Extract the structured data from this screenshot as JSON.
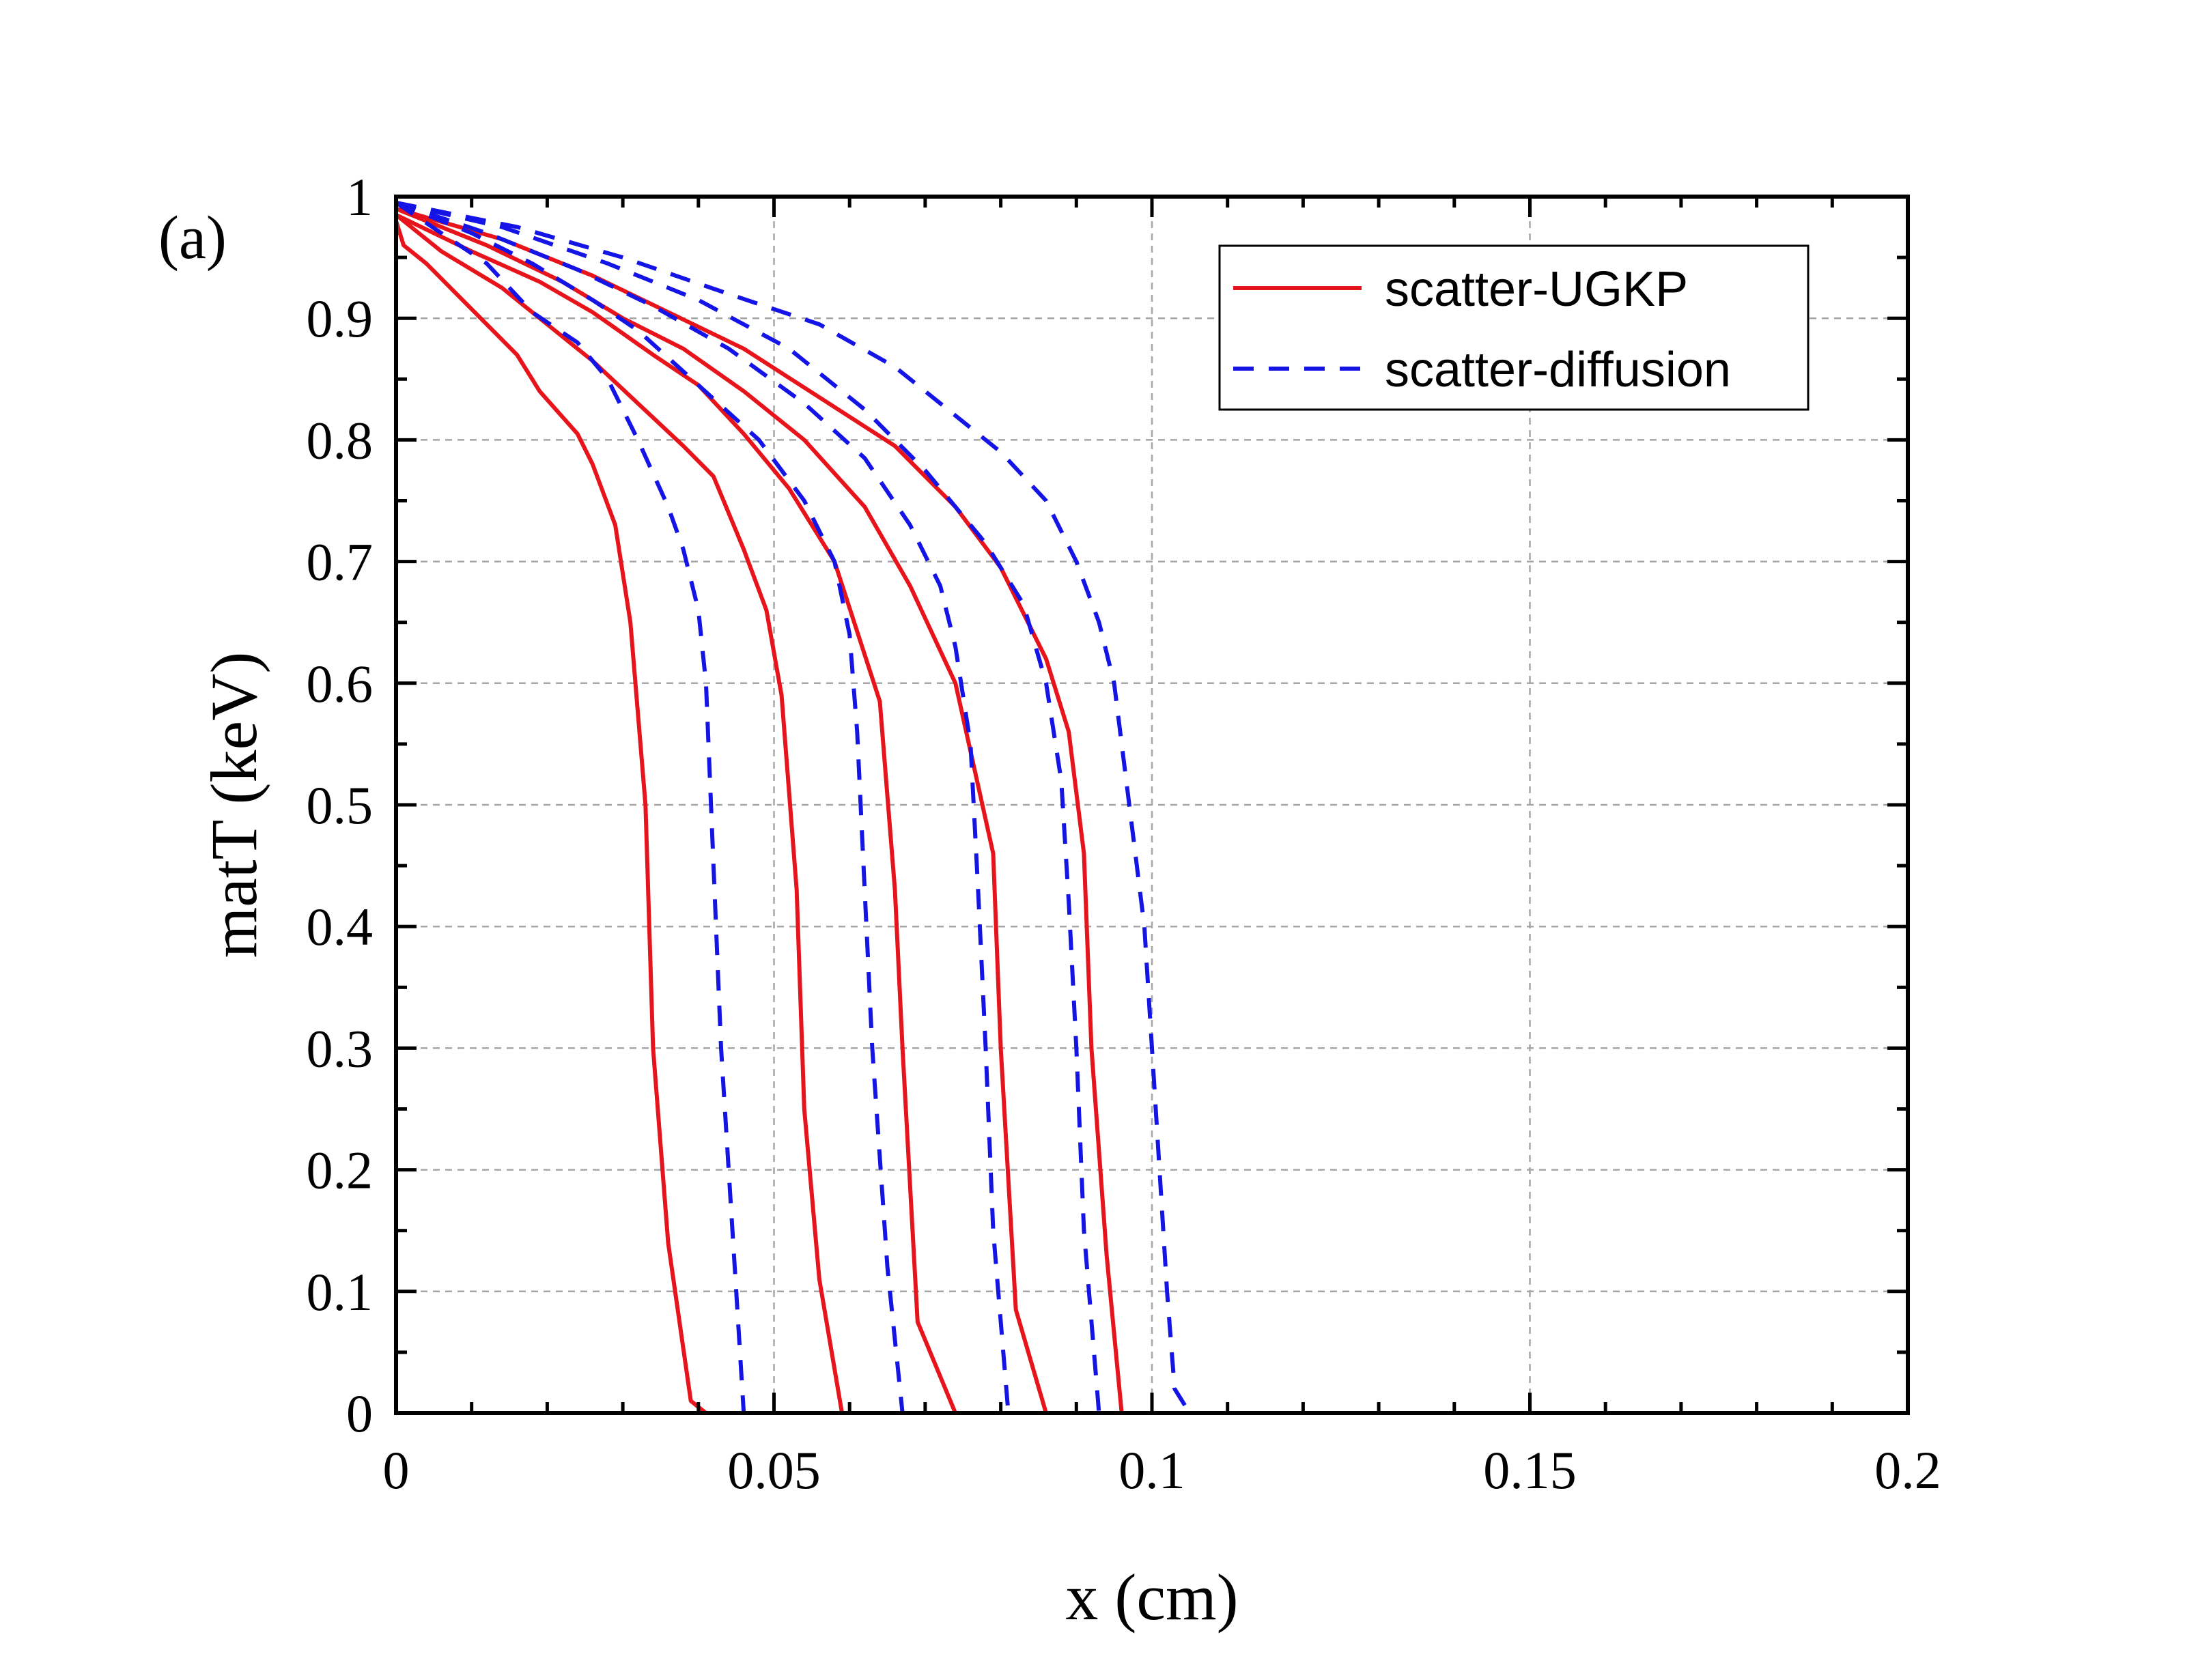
{
  "chart_data": {
    "type": "line",
    "panel_label": "(a)",
    "xlabel": "x (cm)",
    "ylabel": "matT (keV)",
    "xlim": [
      0,
      0.2
    ],
    "ylim": [
      0,
      1
    ],
    "x_ticks": [
      0,
      0.05,
      0.1,
      0.15,
      0.2
    ],
    "x_tick_labels": [
      "0",
      "0.05",
      "0.1",
      "0.15",
      "0.2"
    ],
    "y_ticks": [
      0,
      0.1,
      0.2,
      0.3,
      0.4,
      0.5,
      0.6,
      0.7,
      0.8,
      0.9,
      1
    ],
    "y_tick_labels": [
      "0",
      "0.1",
      "0.2",
      "0.3",
      "0.4",
      "0.5",
      "0.6",
      "0.7",
      "0.8",
      "0.9",
      "1"
    ],
    "grid": true,
    "legend_position": "top-right",
    "legend": [
      {
        "label": "scatter-UGKP",
        "style": "solid",
        "color": "#e8141c"
      },
      {
        "label": "scatter-diffusion",
        "style": "dashed",
        "color": "#1414e6"
      }
    ],
    "series": [
      {
        "name": "scatter-UGKP",
        "style": "solid",
        "color": "#e8141c",
        "points": [
          [
            0,
            0.98
          ],
          [
            0.001,
            0.96
          ],
          [
            0.004,
            0.945
          ],
          [
            0.008,
            0.92
          ],
          [
            0.012,
            0.895
          ],
          [
            0.016,
            0.87
          ],
          [
            0.019,
            0.84
          ],
          [
            0.024,
            0.805
          ],
          [
            0.026,
            0.78
          ],
          [
            0.029,
            0.73
          ],
          [
            0.031,
            0.65
          ],
          [
            0.033,
            0.5
          ],
          [
            0.034,
            0.3
          ],
          [
            0.036,
            0.14
          ],
          [
            0.039,
            0.01
          ],
          [
            0.041,
            0
          ],
          [
            0.2,
            0
          ]
        ]
      },
      {
        "name": "scatter-UGKP",
        "style": "solid",
        "color": "#e8141c",
        "points": [
          [
            0,
            0.985
          ],
          [
            0.006,
            0.955
          ],
          [
            0.014,
            0.925
          ],
          [
            0.02,
            0.895
          ],
          [
            0.026,
            0.865
          ],
          [
            0.032,
            0.83
          ],
          [
            0.038,
            0.795
          ],
          [
            0.042,
            0.77
          ],
          [
            0.046,
            0.71
          ],
          [
            0.049,
            0.66
          ],
          [
            0.051,
            0.59
          ],
          [
            0.053,
            0.43
          ],
          [
            0.054,
            0.25
          ],
          [
            0.056,
            0.11
          ],
          [
            0.059,
            0
          ],
          [
            0.2,
            0
          ]
        ]
      },
      {
        "name": "scatter-UGKP",
        "style": "solid",
        "color": "#e8141c",
        "points": [
          [
            0,
            0.985
          ],
          [
            0.01,
            0.955
          ],
          [
            0.019,
            0.93
          ],
          [
            0.026,
            0.905
          ],
          [
            0.034,
            0.87
          ],
          [
            0.04,
            0.845
          ],
          [
            0.046,
            0.805
          ],
          [
            0.052,
            0.76
          ],
          [
            0.058,
            0.7
          ],
          [
            0.064,
            0.585
          ],
          [
            0.066,
            0.43
          ],
          [
            0.067,
            0.3
          ],
          [
            0.069,
            0.075
          ],
          [
            0.074,
            0
          ],
          [
            0.2,
            0
          ]
        ]
      },
      {
        "name": "scatter-UGKP",
        "style": "solid",
        "color": "#e8141c",
        "points": [
          [
            0,
            0.99
          ],
          [
            0.012,
            0.96
          ],
          [
            0.022,
            0.93
          ],
          [
            0.03,
            0.9
          ],
          [
            0.038,
            0.875
          ],
          [
            0.046,
            0.84
          ],
          [
            0.054,
            0.8
          ],
          [
            0.062,
            0.745
          ],
          [
            0.068,
            0.68
          ],
          [
            0.074,
            0.6
          ],
          [
            0.079,
            0.46
          ],
          [
            0.08,
            0.3
          ],
          [
            0.082,
            0.085
          ],
          [
            0.086,
            0
          ],
          [
            0.2,
            0
          ]
        ]
      },
      {
        "name": "scatter-UGKP",
        "style": "solid",
        "color": "#e8141c",
        "points": [
          [
            0,
            0.99
          ],
          [
            0.014,
            0.965
          ],
          [
            0.026,
            0.935
          ],
          [
            0.036,
            0.905
          ],
          [
            0.046,
            0.875
          ],
          [
            0.056,
            0.835
          ],
          [
            0.066,
            0.795
          ],
          [
            0.074,
            0.745
          ],
          [
            0.08,
            0.695
          ],
          [
            0.086,
            0.62
          ],
          [
            0.089,
            0.56
          ],
          [
            0.091,
            0.46
          ],
          [
            0.092,
            0.3
          ],
          [
            0.094,
            0.13
          ],
          [
            0.096,
            0
          ],
          [
            0.2,
            0
          ]
        ]
      },
      {
        "name": "scatter-diffusion",
        "style": "dashed",
        "color": "#1414e6",
        "points": [
          [
            0,
            0.995
          ],
          [
            0.006,
            0.97
          ],
          [
            0.012,
            0.945
          ],
          [
            0.018,
            0.905
          ],
          [
            0.024,
            0.88
          ],
          [
            0.028,
            0.85
          ],
          [
            0.032,
            0.8
          ],
          [
            0.036,
            0.745
          ],
          [
            0.038,
            0.71
          ],
          [
            0.04,
            0.66
          ],
          [
            0.041,
            0.6
          ],
          [
            0.042,
            0.45
          ],
          [
            0.043,
            0.3
          ],
          [
            0.045,
            0.1
          ],
          [
            0.046,
            0
          ],
          [
            0.2,
            0
          ]
        ]
      },
      {
        "name": "scatter-diffusion",
        "style": "dashed",
        "color": "#1414e6",
        "points": [
          [
            0,
            0.995
          ],
          [
            0.01,
            0.97
          ],
          [
            0.018,
            0.945
          ],
          [
            0.026,
            0.915
          ],
          [
            0.032,
            0.89
          ],
          [
            0.04,
            0.845
          ],
          [
            0.048,
            0.8
          ],
          [
            0.054,
            0.75
          ],
          [
            0.058,
            0.7
          ],
          [
            0.06,
            0.64
          ],
          [
            0.061,
            0.56
          ],
          [
            0.062,
            0.43
          ],
          [
            0.063,
            0.3
          ],
          [
            0.065,
            0.12
          ],
          [
            0.067,
            0
          ],
          [
            0.2,
            0
          ]
        ]
      },
      {
        "name": "scatter-diffusion",
        "style": "dashed",
        "color": "#1414e6",
        "points": [
          [
            0,
            0.995
          ],
          [
            0.012,
            0.97
          ],
          [
            0.024,
            0.94
          ],
          [
            0.034,
            0.91
          ],
          [
            0.044,
            0.875
          ],
          [
            0.054,
            0.83
          ],
          [
            0.062,
            0.785
          ],
          [
            0.068,
            0.73
          ],
          [
            0.072,
            0.68
          ],
          [
            0.074,
            0.63
          ],
          [
            0.076,
            0.55
          ],
          [
            0.077,
            0.43
          ],
          [
            0.078,
            0.3
          ],
          [
            0.079,
            0.15
          ],
          [
            0.081,
            0
          ],
          [
            0.2,
            0
          ]
        ]
      },
      {
        "name": "scatter-diffusion",
        "style": "dashed",
        "color": "#1414e6",
        "points": [
          [
            0,
            0.995
          ],
          [
            0.014,
            0.975
          ],
          [
            0.028,
            0.945
          ],
          [
            0.04,
            0.915
          ],
          [
            0.052,
            0.875
          ],
          [
            0.062,
            0.825
          ],
          [
            0.07,
            0.775
          ],
          [
            0.078,
            0.715
          ],
          [
            0.083,
            0.665
          ],
          [
            0.086,
            0.6
          ],
          [
            0.088,
            0.52
          ],
          [
            0.089,
            0.42
          ],
          [
            0.09,
            0.3
          ],
          [
            0.091,
            0.15
          ],
          [
            0.093,
            0
          ],
          [
            0.2,
            0
          ]
        ]
      },
      {
        "name": "scatter-diffusion",
        "style": "dashed",
        "color": "#1414e6",
        "points": [
          [
            0,
            0.995
          ],
          [
            0.016,
            0.975
          ],
          [
            0.03,
            0.95
          ],
          [
            0.044,
            0.92
          ],
          [
            0.056,
            0.895
          ],
          [
            0.066,
            0.86
          ],
          [
            0.074,
            0.82
          ],
          [
            0.08,
            0.79
          ],
          [
            0.086,
            0.75
          ],
          [
            0.09,
            0.7
          ],
          [
            0.093,
            0.65
          ],
          [
            0.095,
            0.6
          ],
          [
            0.097,
            0.5
          ],
          [
            0.099,
            0.4
          ],
          [
            0.1,
            0.3
          ],
          [
            0.101,
            0.2
          ],
          [
            0.102,
            0.1
          ],
          [
            0.103,
            0.02
          ],
          [
            0.105,
            0
          ],
          [
            0.2,
            0
          ]
        ]
      }
    ]
  }
}
